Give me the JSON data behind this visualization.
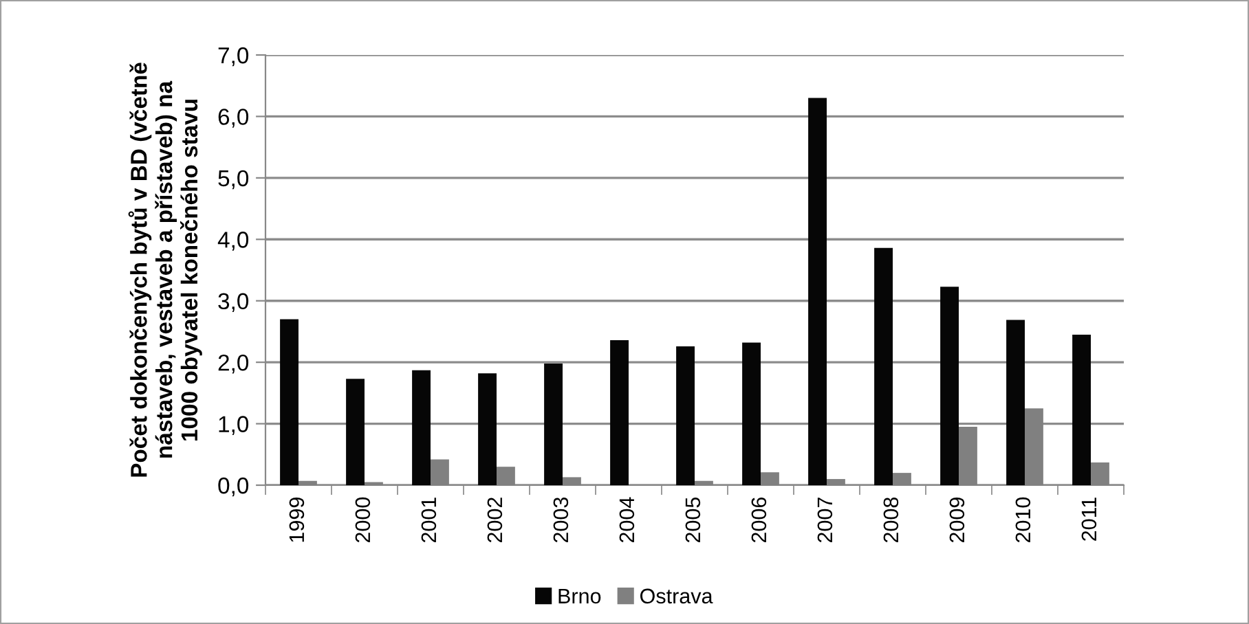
{
  "chart_data": {
    "type": "bar",
    "ylabel": "Počet dokončených bytů v BD (včetně\nnástaveb, vestaveb a přístaveb) na\n1000 obyvatel konečného stavu",
    "categories": [
      "1999",
      "2000",
      "2001",
      "2002",
      "2003",
      "2004",
      "2005",
      "2006",
      "2007",
      "2008",
      "2009",
      "2010",
      "2011"
    ],
    "series": [
      {
        "name": "Brno",
        "color": "#060606",
        "values": [
          2.7,
          1.73,
          1.87,
          1.82,
          1.98,
          2.36,
          2.26,
          2.32,
          6.3,
          3.86,
          3.23,
          2.69,
          2.45
        ]
      },
      {
        "name": "Ostrava",
        "color": "#808080",
        "values": [
          0.07,
          0.05,
          0.42,
          0.3,
          0.13,
          0.0,
          0.07,
          0.21,
          0.1,
          0.2,
          0.95,
          1.25,
          0.37
        ]
      }
    ],
    "ylim": [
      0,
      7
    ],
    "yticks": [
      {
        "value": 0,
        "label": "0,0"
      },
      {
        "value": 1,
        "label": "1,0"
      },
      {
        "value": 2,
        "label": "2,0"
      },
      {
        "value": 3,
        "label": "3,0"
      },
      {
        "value": 4,
        "label": "4,0"
      },
      {
        "value": 5,
        "label": "5,0"
      },
      {
        "value": 6,
        "label": "6,0"
      },
      {
        "value": 7,
        "label": "7,0"
      }
    ],
    "grid": "y",
    "legend": "bottom"
  }
}
